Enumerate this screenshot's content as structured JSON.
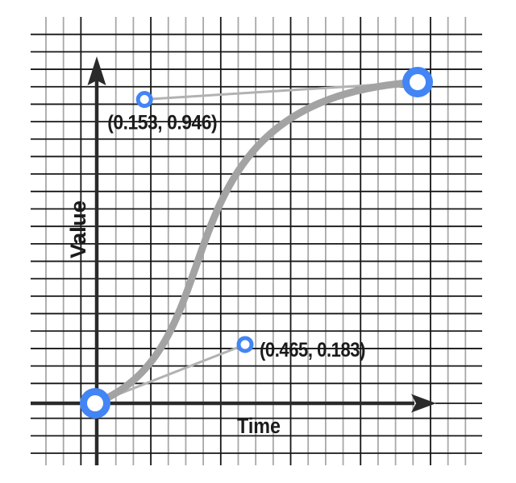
{
  "chart_data": {
    "type": "bezier-curve",
    "description": "Easing curve editor: cubic bezier from (0,0) to (1,1) plotted as Value vs Time",
    "xlabel": "Time",
    "ylabel": "Value",
    "xrange": [
      0,
      1
    ],
    "yrange": [
      0,
      1
    ],
    "grid": true,
    "anchors": [
      {
        "name": "start",
        "x": 0,
        "y": 0
      },
      {
        "name": "end",
        "x": 1,
        "y": 1
      }
    ],
    "control_points": [
      {
        "x": 0.465,
        "y": 0.183,
        "label": "(0.465, 0.183)",
        "attached_to": "start"
      },
      {
        "x": 0.153,
        "y": 0.946,
        "label": "(0.153, 0.946)",
        "attached_to": "end"
      }
    ]
  },
  "labels": {
    "time": "Time",
    "value": "Value"
  },
  "colors": {
    "background": "#ffffff",
    "grid_minor": "#a8a8a8",
    "grid_major": "#161616",
    "axis": "#2a2a2a",
    "curve_gray": "#a3a3a3",
    "handle_gray": "#b2b2b2",
    "point_blue": "#4285f4",
    "point_center": "#ffffff",
    "text": "#1b1b1b"
  }
}
